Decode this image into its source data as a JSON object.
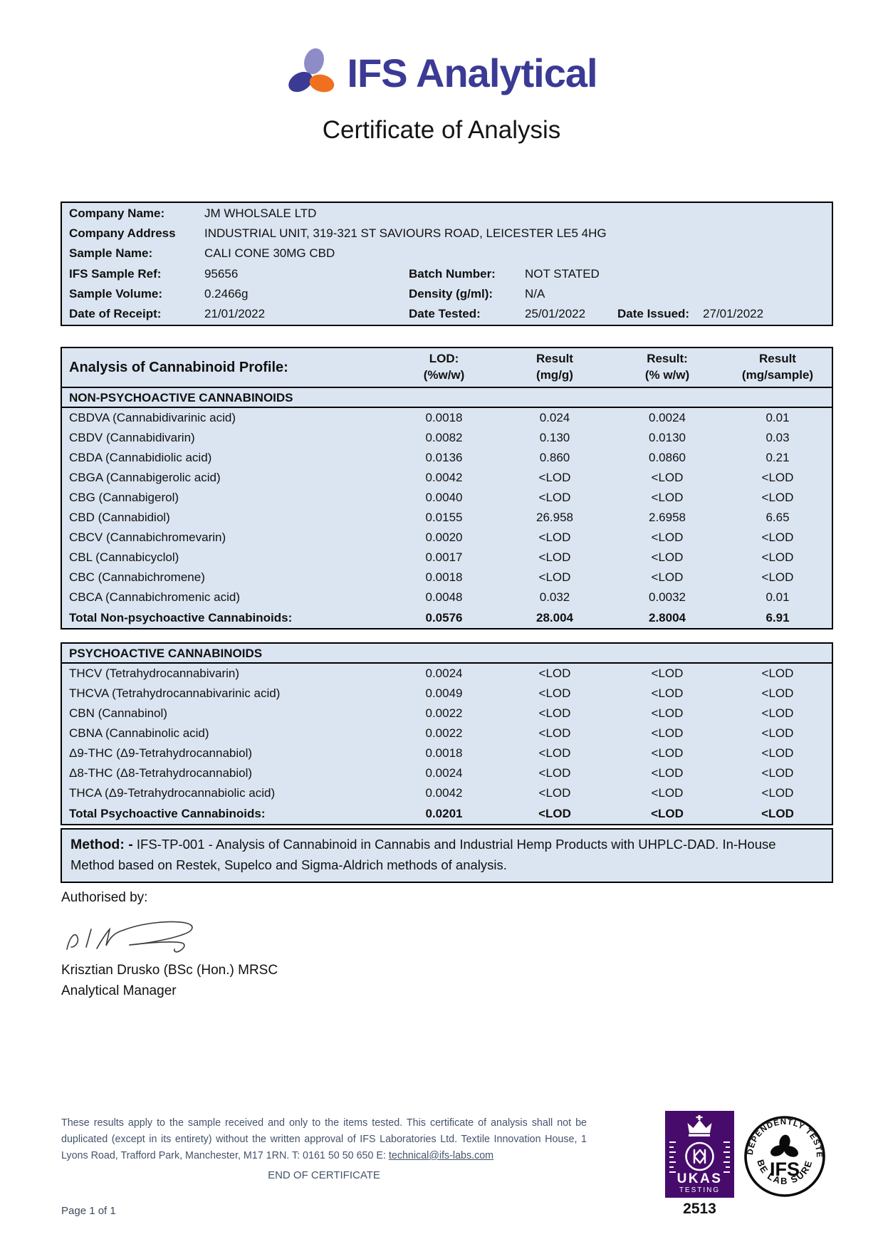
{
  "brand": {
    "name": "IFS Analytical"
  },
  "title": "Certificate of Analysis",
  "info": {
    "rows": [
      {
        "pairs": [
          [
            "Company Name:",
            "JM WHOLSALE LTD"
          ]
        ]
      },
      {
        "pairs": [
          [
            "Company Address",
            "INDUSTRIAL UNIT, 319-321 ST SAVIOURS ROAD, LEICESTER LE5 4HG"
          ]
        ]
      },
      {
        "pairs": [
          [
            "Sample Name:",
            "CALI CONE 30MG CBD"
          ]
        ]
      },
      {
        "pairs": [
          [
            "IFS Sample Ref:",
            "95656"
          ],
          [
            "Batch Number:",
            "NOT STATED"
          ]
        ]
      },
      {
        "pairs": [
          [
            "Sample Volume:",
            "0.2466g"
          ],
          [
            "Density (g/ml):",
            "N/A"
          ]
        ]
      },
      {
        "pairs": [
          [
            "Date of Receipt:",
            "21/01/2022"
          ],
          [
            "Date Tested:",
            "25/01/2022"
          ],
          [
            "Date Issued:",
            "27/01/2022"
          ]
        ]
      }
    ]
  },
  "analysis": {
    "title": "Analysis of Cannabinoid Profile:",
    "columns": [
      [
        "LOD:",
        "(%w/w)"
      ],
      [
        "Result",
        "(mg/g)"
      ],
      [
        "Result:",
        "(% w/w)"
      ],
      [
        "Result",
        "(mg/sample)"
      ]
    ],
    "non_psychoactive": {
      "header": "NON-PSYCHOACTIVE CANNABINOIDS",
      "rows": [
        [
          "CBDVA (Cannabidivarinic acid)",
          "0.0018",
          "0.024",
          "0.0024",
          "0.01"
        ],
        [
          "CBDV (Cannabidivarin)",
          "0.0082",
          "0.130",
          "0.0130",
          "0.03"
        ],
        [
          "CBDA (Cannabidiolic acid)",
          "0.0136",
          "0.860",
          "0.0860",
          "0.21"
        ],
        [
          "CBGA (Cannabigerolic acid)",
          "0.0042",
          "<LOD",
          "<LOD",
          "<LOD"
        ],
        [
          "CBG (Cannabigerol)",
          "0.0040",
          "<LOD",
          "<LOD",
          "<LOD"
        ],
        [
          "CBD (Cannabidiol)",
          "0.0155",
          "26.958",
          "2.6958",
          "6.65"
        ],
        [
          "CBCV (Cannabichromevarin)",
          "0.0020",
          "<LOD",
          "<LOD",
          "<LOD"
        ],
        [
          "CBL (Cannabicyclol)",
          "0.0017",
          "<LOD",
          "<LOD",
          "<LOD"
        ],
        [
          "CBC (Cannabichromene)",
          "0.0018",
          "<LOD",
          "<LOD",
          "<LOD"
        ],
        [
          "CBCA (Cannabichromenic acid)",
          "0.0048",
          "0.032",
          "0.0032",
          "0.01"
        ]
      ],
      "total": [
        "Total Non-psychoactive Cannabinoids:",
        "0.0576",
        "28.004",
        "2.8004",
        "6.91"
      ]
    },
    "psychoactive": {
      "header": "PSYCHOACTIVE CANNABINOIDS",
      "rows": [
        [
          "THCV (Tetrahydrocannabivarin)",
          "0.0024",
          "<LOD",
          "<LOD",
          "<LOD"
        ],
        [
          "THCVA (Tetrahydrocannabivarinic acid)",
          "0.0049",
          "<LOD",
          "<LOD",
          "<LOD"
        ],
        [
          "CBN (Cannabinol)",
          "0.0022",
          "<LOD",
          "<LOD",
          "<LOD"
        ],
        [
          "CBNA (Cannabinolic acid)",
          "0.0022",
          "<LOD",
          "<LOD",
          "<LOD"
        ],
        [
          "Δ9-THC (Δ9-Tetrahydrocannabiol)",
          "0.0018",
          "<LOD",
          "<LOD",
          "<LOD"
        ],
        [
          "Δ8-THC (Δ8-Tetrahydrocannabiol)",
          "0.0024",
          "<LOD",
          "<LOD",
          "<LOD"
        ],
        [
          "THCA (Δ9-Tetrahydrocannabiolic acid)",
          "0.0042",
          "<LOD",
          "<LOD",
          "<LOD"
        ]
      ],
      "total": [
        "Total Psychoactive Cannabinoids:",
        "0.0201",
        "<LOD",
        "<LOD",
        "<LOD"
      ]
    }
  },
  "method": {
    "label": "Method: -",
    "text": "IFS-TP-001 - Analysis of Cannabinoid in Cannabis and Industrial Hemp Products with UHPLC-DAD. In-House Method based on Restek, Supelco and Sigma-Aldrich methods of analysis."
  },
  "authorisation": {
    "label": "Authorised by:",
    "name": "Krisztian Drusko (BSc (Hon.) MRSC",
    "role": "Analytical Manager"
  },
  "footer": {
    "disclaimer": "These results apply to the sample received and only to the items tested. This certificate of analysis shall not be duplicated (except in its entirety) without the written approval of IFS Laboratories Ltd. Textile Innovation House, 1 Lyons Road, Trafford Park, Manchester, M17 1RN. T: 0161 50 50 650 E: ",
    "email": "technical@ifs-labs.com",
    "end_text": "END OF CERTIFICATE",
    "page": "Page 1 of 1",
    "ukas_label": "UKAS",
    "ukas_sub": "TESTING",
    "ukas_number": "2513",
    "stamp_top": "INDEPENDENTLY TESTED",
    "stamp_center": "IFS",
    "stamp_bottom": "BE LAB SURE"
  },
  "colors": {
    "table_bg": "#dbe5f1",
    "brand_blue": "#3b3a95",
    "logo_light_purple": "#8e8cc8",
    "logo_orange": "#f07020",
    "ukas_purple": "#470c6b",
    "footer_text": "#44546a"
  }
}
